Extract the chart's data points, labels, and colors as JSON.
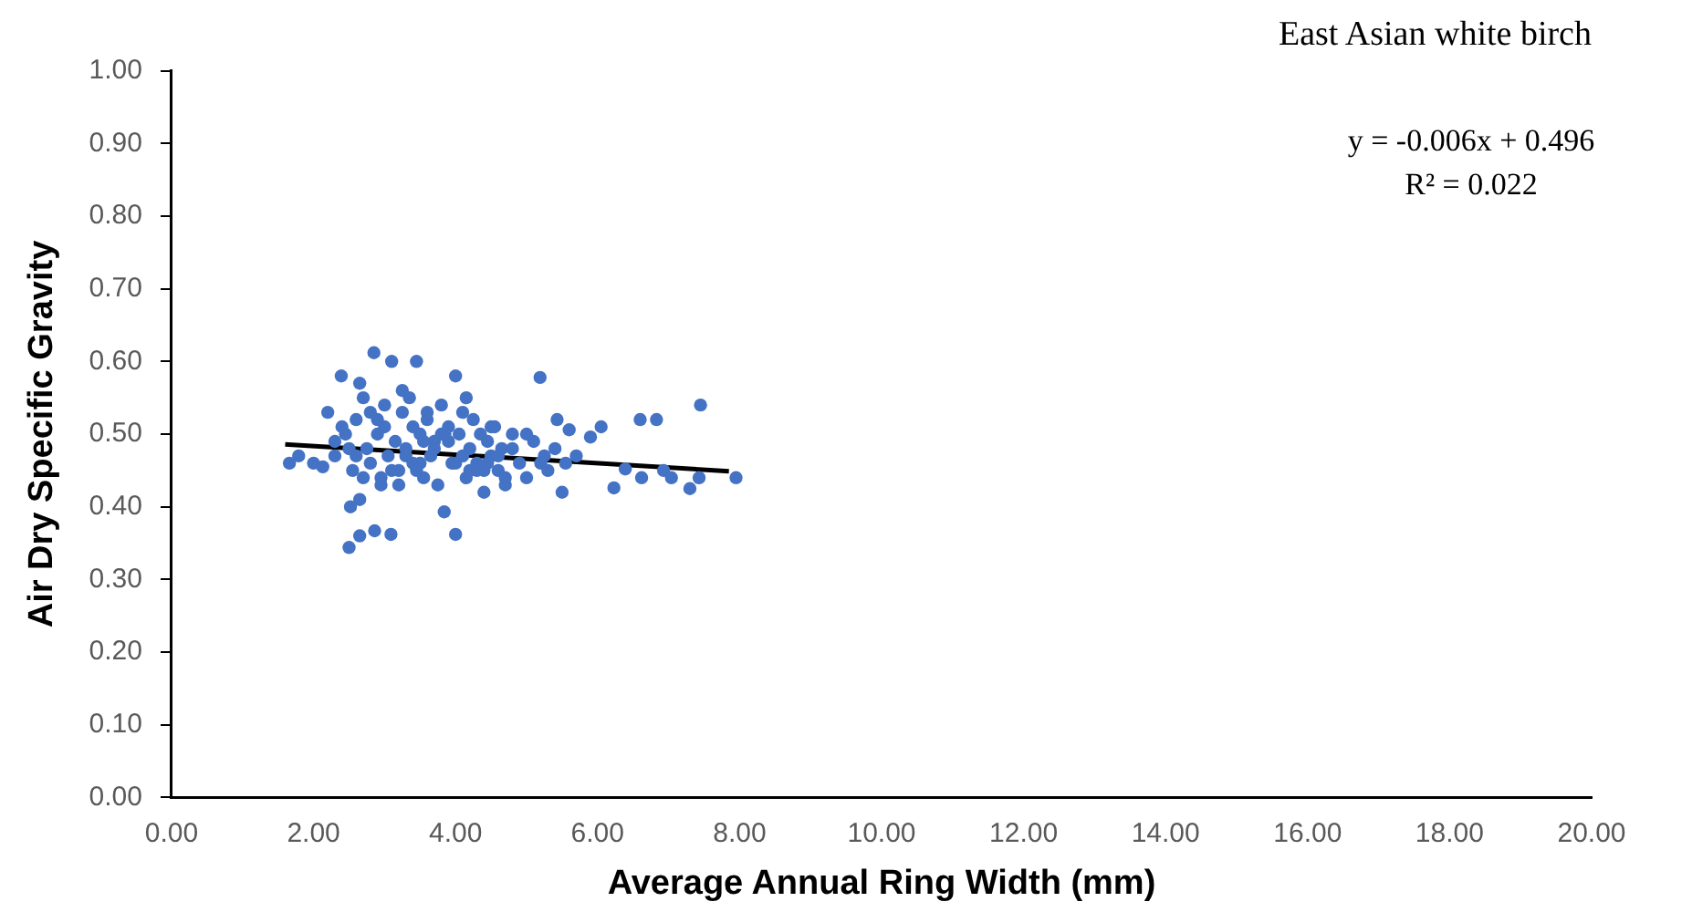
{
  "chart_data": {
    "type": "scatter",
    "title": "East Asian white birch",
    "xlabel": "Average Annual Ring Width (mm)",
    "ylabel": "Air Dry Specific Gravity",
    "annotations": [
      "y = -0.006x + 0.496",
      "R² = 0.022"
    ],
    "xlim": [
      0,
      20
    ],
    "xticks": [
      {
        "value": 0,
        "label": "0.00"
      },
      {
        "value": 2,
        "label": "2.00"
      },
      {
        "value": 4,
        "label": "4.00"
      },
      {
        "value": 6,
        "label": "6.00"
      },
      {
        "value": 8,
        "label": "8.00"
      },
      {
        "value": 10,
        "label": "10.00"
      },
      {
        "value": 12,
        "label": "12.00"
      },
      {
        "value": 14,
        "label": "14.00"
      },
      {
        "value": 16,
        "label": "16.00"
      },
      {
        "value": 18,
        "label": "18.00"
      },
      {
        "value": 20,
        "label": "20.00"
      }
    ],
    "ylim": [
      0,
      1
    ],
    "yticks": [
      {
        "value": 0,
        "label": "0.00"
      },
      {
        "value": 0.1,
        "label": "0.10"
      },
      {
        "value": 0.2,
        "label": "0.20"
      },
      {
        "value": 0.3,
        "label": "0.30"
      },
      {
        "value": 0.4,
        "label": "0.40"
      },
      {
        "value": 0.5,
        "label": "0.50"
      },
      {
        "value": 0.6,
        "label": "0.60"
      },
      {
        "value": 0.7,
        "label": "0.70"
      },
      {
        "value": 0.8,
        "label": "0.80"
      },
      {
        "value": 0.9,
        "label": "0.90"
      },
      {
        "value": 1,
        "label": "1.00"
      }
    ],
    "grid": false,
    "legend": false,
    "series": [
      {
        "color": "#4472c4",
        "marker": "circle",
        "x": [
          1.66,
          1.79,
          2.0,
          2.13,
          2.2,
          2.3,
          2.39,
          2.45,
          2.5,
          2.55,
          2.6,
          2.65,
          2.7,
          2.75,
          2.8,
          2.85,
          2.86,
          2.9,
          2.95,
          3.0,
          3.05,
          3.09,
          3.1,
          3.15,
          3.2,
          3.25,
          3.3,
          3.35,
          3.4,
          3.45,
          3.5,
          3.55,
          3.6,
          3.65,
          3.7,
          3.75,
          3.8,
          3.84,
          3.9,
          3.95,
          4.0,
          4.0,
          4.05,
          4.1,
          4.15,
          4.2,
          4.25,
          4.3,
          4.35,
          4.4,
          4.45,
          4.5,
          4.55,
          4.6,
          4.65,
          4.7,
          4.8,
          4.9,
          5.0,
          5.1,
          5.19,
          5.25,
          5.3,
          5.4,
          5.43,
          5.5,
          5.55,
          5.6,
          5.7,
          5.9,
          6.05,
          6.23,
          6.39,
          6.62,
          6.6,
          6.83,
          6.93,
          7.04,
          7.3,
          7.43,
          7.45,
          7.95,
          2.3,
          2.6,
          2.9,
          3.2,
          3.5,
          3.8,
          4.1,
          4.4,
          4.7,
          2.5,
          2.8,
          3.1,
          3.4,
          3.7,
          4.0,
          4.3,
          4.6,
          5.0,
          2.4,
          2.7,
          3.0,
          3.3,
          3.6,
          3.9,
          4.2,
          4.5,
          4.8,
          5.2,
          2.65,
          2.95,
          3.25,
          3.55,
          3.85,
          4.15,
          4.45,
          2.52,
          2.65,
          3.45
        ],
        "values": [
          0.46,
          0.47,
          0.46,
          0.455,
          0.53,
          0.47,
          0.58,
          0.5,
          0.344,
          0.45,
          0.52,
          0.41,
          0.55,
          0.48,
          0.46,
          0.612,
          0.367,
          0.5,
          0.44,
          0.51,
          0.47,
          0.362,
          0.6,
          0.49,
          0.45,
          0.53,
          0.48,
          0.55,
          0.46,
          0.6,
          0.5,
          0.44,
          0.52,
          0.47,
          0.49,
          0.43,
          0.54,
          0.393,
          0.51,
          0.46,
          0.58,
          0.362,
          0.5,
          0.53,
          0.44,
          0.48,
          0.52,
          0.46,
          0.5,
          0.42,
          0.49,
          0.47,
          0.51,
          0.45,
          0.48,
          0.43,
          0.5,
          0.46,
          0.44,
          0.49,
          0.578,
          0.47,
          0.45,
          0.48,
          0.52,
          0.42,
          0.46,
          0.506,
          0.47,
          0.496,
          0.51,
          0.426,
          0.452,
          0.44,
          0.52,
          0.52,
          0.45,
          0.44,
          0.425,
          0.44,
          0.54,
          0.44,
          0.49,
          0.47,
          0.52,
          0.43,
          0.46,
          0.5,
          0.47,
          0.45,
          0.44,
          0.48,
          0.53,
          0.45,
          0.51,
          0.48,
          0.46,
          0.45,
          0.47,
          0.5,
          0.51,
          0.44,
          0.54,
          0.47,
          0.53,
          0.49,
          0.45,
          0.51,
          0.48,
          0.46,
          0.57,
          0.43,
          0.56,
          0.49,
          0.5,
          0.55,
          0.46,
          0.4,
          0.36,
          0.45
        ]
      },
      {
        "type": "line",
        "color": "#000000",
        "marker": "none",
        "x": [
          1.6,
          7.85
        ],
        "values": [
          0.486,
          0.449
        ]
      }
    ]
  }
}
